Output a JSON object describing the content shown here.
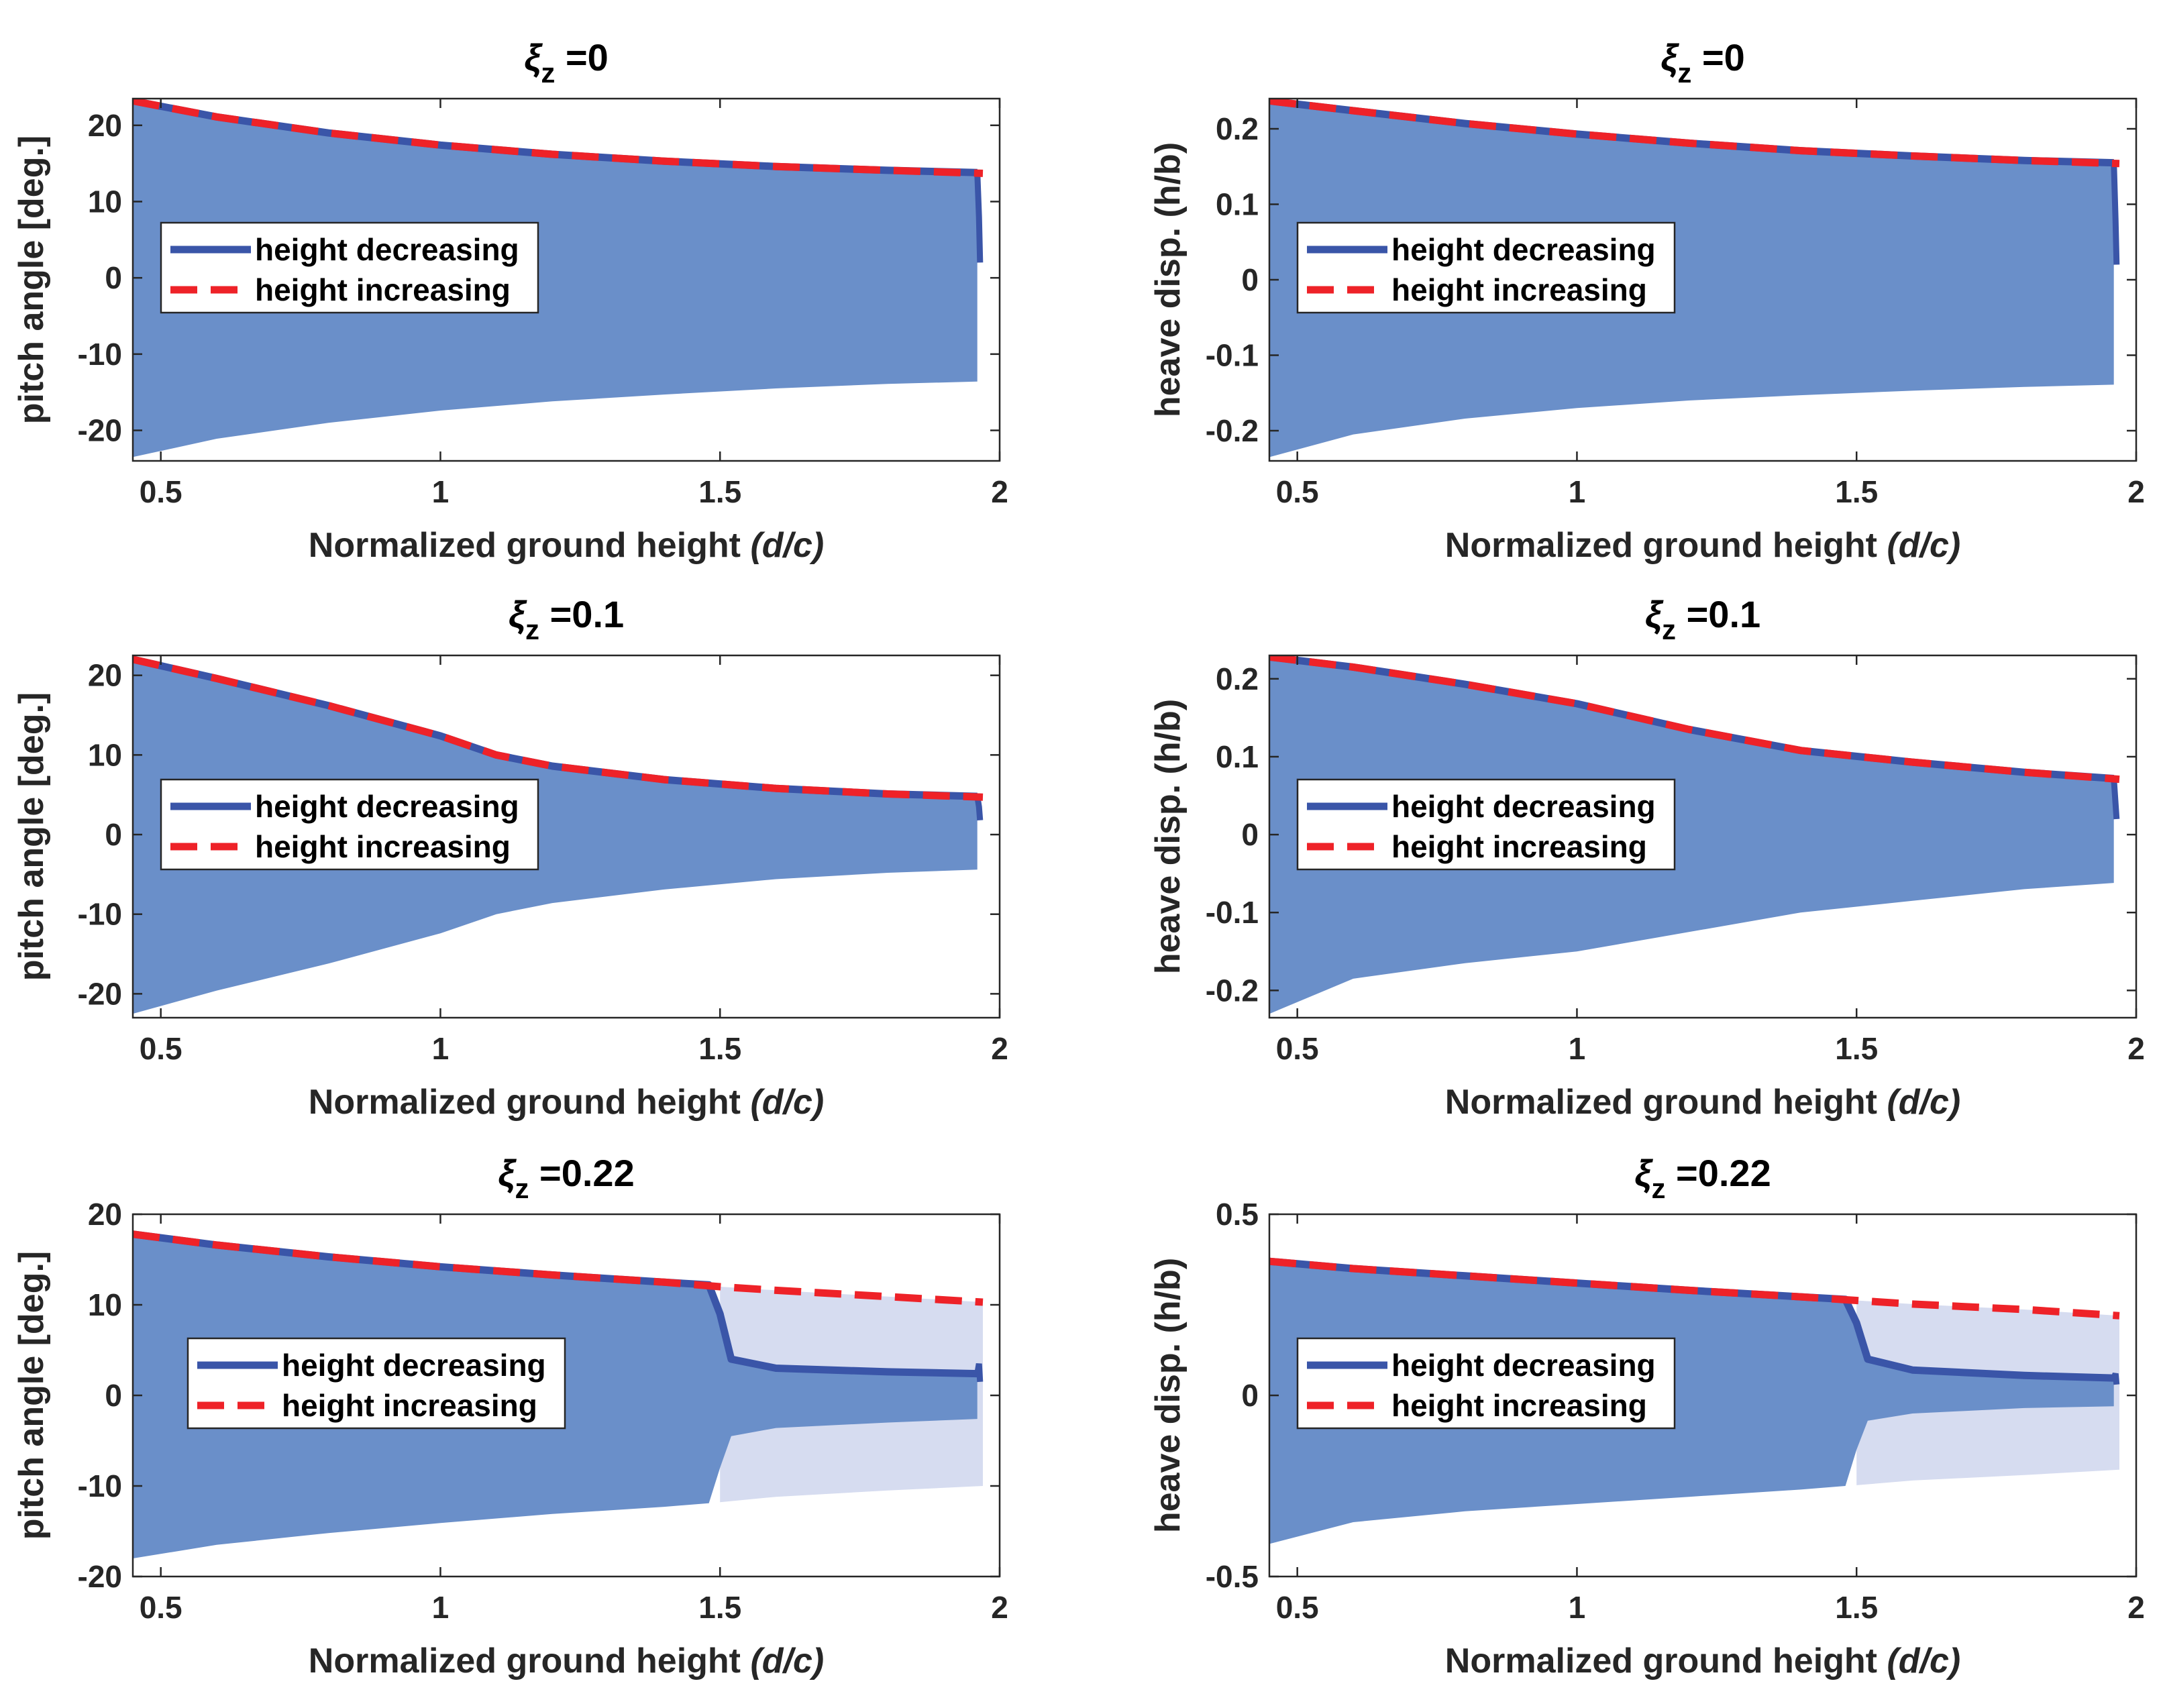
{
  "chart_data": [
    {
      "type": "area",
      "title_symbol": "ξ",
      "title_sub": "z",
      "title_value": " =0",
      "xlabel": "Normalized ground height ",
      "xlabel_italic": "(d/c)",
      "ylabel": "pitch angle [deg.]",
      "xlim": [
        0.45,
        2.0
      ],
      "ylim": [
        -24,
        23.5
      ],
      "xticks": [
        "0.5",
        "1",
        "1.5",
        "2"
      ],
      "xtick_values": [
        0.5,
        1,
        1.5,
        2
      ],
      "yticks": [
        "-20",
        "-10",
        "0",
        "10",
        "20"
      ],
      "ytick_values": [
        -20,
        -10,
        0,
        10,
        20
      ],
      "legend": [
        "height decreasing",
        "height increasing"
      ],
      "series": [
        {
          "name": "height decreasing",
          "x": [
            0.45,
            0.6,
            0.8,
            1.0,
            1.2,
            1.4,
            1.6,
            1.8,
            1.96
          ],
          "values": [
            23.2,
            21.1,
            19.0,
            17.4,
            16.2,
            15.3,
            14.6,
            14.1,
            13.8
          ],
          "drop": [
            [
              1.96,
              13.8
            ],
            [
              1.963,
              8.0
            ],
            [
              1.965,
              2.0
            ]
          ]
        },
        {
          "name": "height increasing",
          "x": [
            0.45,
            0.6,
            0.8,
            1.0,
            1.2,
            1.4,
            1.6,
            1.8,
            1.97
          ],
          "values": [
            23.2,
            21.1,
            19.0,
            17.4,
            16.2,
            15.3,
            14.6,
            14.1,
            13.7
          ]
        }
      ],
      "envelope_lower": {
        "x": [
          0.45,
          0.6,
          0.8,
          1.0,
          1.2,
          1.4,
          1.6,
          1.8,
          1.96
        ],
        "values": [
          -23.5,
          -21.1,
          -19.0,
          -17.4,
          -16.2,
          -15.3,
          -14.5,
          -13.9,
          -13.6
        ]
      },
      "legend_pos": "left"
    },
    {
      "type": "area",
      "title_symbol": "ξ",
      "title_sub": "z",
      "title_value": " =0",
      "xlabel": "Normalized ground height ",
      "xlabel_italic": "(d/c)",
      "ylabel": "heave disp. (h/b)",
      "xlim": [
        0.45,
        2.0
      ],
      "ylim": [
        -0.24,
        0.24
      ],
      "xticks": [
        "0.5",
        "1",
        "1.5",
        "2"
      ],
      "xtick_values": [
        0.5,
        1,
        1.5,
        2
      ],
      "yticks": [
        "-0.2",
        "-0.1",
        "0",
        "0.1",
        "0.2"
      ],
      "ytick_values": [
        -0.2,
        -0.1,
        0,
        0.1,
        0.2
      ],
      "legend": [
        "height decreasing",
        "height increasing"
      ],
      "series": [
        {
          "name": "height decreasing",
          "x": [
            0.45,
            0.6,
            0.8,
            1.0,
            1.2,
            1.4,
            1.6,
            1.8,
            1.96
          ],
          "values": [
            0.237,
            0.224,
            0.207,
            0.193,
            0.181,
            0.171,
            0.164,
            0.158,
            0.155
          ],
          "drop": [
            [
              1.96,
              0.155
            ],
            [
              1.963,
              0.08
            ],
            [
              1.965,
              0.02
            ]
          ]
        },
        {
          "name": "height increasing",
          "x": [
            0.45,
            0.6,
            0.8,
            1.0,
            1.2,
            1.4,
            1.6,
            1.8,
            1.97
          ],
          "values": [
            0.237,
            0.224,
            0.207,
            0.193,
            0.181,
            0.171,
            0.164,
            0.158,
            0.154
          ]
        }
      ],
      "envelope_lower": {
        "x": [
          0.45,
          0.6,
          0.8,
          1.0,
          1.2,
          1.4,
          1.6,
          1.8,
          1.96
        ],
        "values": [
          -0.235,
          -0.205,
          -0.184,
          -0.17,
          -0.16,
          -0.153,
          -0.147,
          -0.142,
          -0.139
        ]
      },
      "legend_pos": "left"
    },
    {
      "type": "area",
      "title_symbol": "ξ",
      "title_sub": "z",
      "title_value": " =0.1",
      "xlabel": "Normalized ground height ",
      "xlabel_italic": "(d/c)",
      "ylabel": "pitch angle [deg.]",
      "xlim": [
        0.45,
        2.0
      ],
      "ylim": [
        -23,
        22.5
      ],
      "xticks": [
        "0.5",
        "1",
        "1.5",
        "2"
      ],
      "xtick_values": [
        0.5,
        1,
        1.5,
        2
      ],
      "yticks": [
        "-20",
        "-10",
        "0",
        "10",
        "20"
      ],
      "ytick_values": [
        -20,
        -10,
        0,
        10,
        20
      ],
      "legend": [
        "height decreasing",
        "height increasing"
      ],
      "series": [
        {
          "name": "height decreasing",
          "x": [
            0.45,
            0.6,
            0.8,
            1.0,
            1.1,
            1.2,
            1.4,
            1.6,
            1.8,
            1.96
          ],
          "values": [
            22.0,
            19.6,
            16.2,
            12.4,
            10.0,
            8.6,
            6.9,
            5.8,
            5.1,
            4.8
          ],
          "drop": [
            [
              1.96,
              4.8
            ],
            [
              1.963,
              3.5
            ],
            [
              1.965,
              1.8
            ]
          ]
        },
        {
          "name": "height increasing",
          "x": [
            0.45,
            0.6,
            0.8,
            1.0,
            1.1,
            1.2,
            1.4,
            1.6,
            1.8,
            1.97
          ],
          "values": [
            22.0,
            19.6,
            16.2,
            12.4,
            10.0,
            8.6,
            6.9,
            5.8,
            5.1,
            4.7
          ]
        }
      ],
      "envelope_lower": {
        "x": [
          0.45,
          0.6,
          0.8,
          1.0,
          1.1,
          1.2,
          1.4,
          1.6,
          1.8,
          1.96
        ],
        "values": [
          -22.5,
          -19.6,
          -16.2,
          -12.4,
          -10.0,
          -8.6,
          -6.9,
          -5.6,
          -4.8,
          -4.4
        ]
      },
      "legend_pos": "left"
    },
    {
      "type": "area",
      "title_symbol": "ξ",
      "title_sub": "z",
      "title_value": " =0.1",
      "xlabel": "Normalized ground height ",
      "xlabel_italic": "(d/c)",
      "ylabel": "heave disp. (h/b)",
      "xlim": [
        0.45,
        2.0
      ],
      "ylim": [
        -0.235,
        0.23
      ],
      "xticks": [
        "0.5",
        "1",
        "1.5",
        "2"
      ],
      "xtick_values": [
        0.5,
        1,
        1.5,
        2
      ],
      "yticks": [
        "-0.2",
        "-0.1",
        "0",
        "0.1",
        "0.2"
      ],
      "ytick_values": [
        -0.2,
        -0.1,
        0,
        0.1,
        0.2
      ],
      "legend": [
        "height decreasing",
        "height increasing"
      ],
      "series": [
        {
          "name": "height decreasing",
          "x": [
            0.45,
            0.6,
            0.8,
            1.0,
            1.2,
            1.4,
            1.6,
            1.8,
            1.96
          ],
          "values": [
            0.228,
            0.215,
            0.193,
            0.168,
            0.135,
            0.108,
            0.093,
            0.08,
            0.072
          ],
          "drop": [
            [
              1.96,
              0.072
            ],
            [
              1.963,
              0.04
            ],
            [
              1.965,
              0.02
            ]
          ]
        },
        {
          "name": "height increasing",
          "x": [
            0.45,
            0.6,
            0.8,
            1.0,
            1.2,
            1.4,
            1.6,
            1.8,
            1.97
          ],
          "values": [
            0.228,
            0.215,
            0.193,
            0.168,
            0.135,
            0.108,
            0.093,
            0.08,
            0.071
          ]
        }
      ],
      "envelope_lower": {
        "x": [
          0.45,
          0.6,
          0.8,
          1.0,
          1.2,
          1.4,
          1.6,
          1.8,
          1.96
        ],
        "values": [
          -0.23,
          -0.185,
          -0.165,
          -0.15,
          -0.125,
          -0.1,
          -0.085,
          -0.07,
          -0.062
        ]
      },
      "legend_pos": "left"
    },
    {
      "type": "area",
      "title_symbol": "ξ",
      "title_sub": "z",
      "title_value": " =0.22",
      "xlabel": "Normalized ground height ",
      "xlabel_italic": "(d/c)",
      "ylabel": "pitch angle [deg.]",
      "xlim": [
        0.45,
        2.0
      ],
      "ylim": [
        -20,
        20
      ],
      "xticks": [
        "0.5",
        "1",
        "1.5",
        "2"
      ],
      "xtick_values": [
        0.5,
        1,
        1.5,
        2
      ],
      "yticks": [
        "-20",
        "-10",
        "0",
        "10",
        "20"
      ],
      "ytick_values": [
        -20,
        -10,
        0,
        10,
        20
      ],
      "legend": [
        "height decreasing",
        "height increasing"
      ],
      "series": [
        {
          "name": "height decreasing",
          "x": [
            0.45,
            0.6,
            0.8,
            1.0,
            1.2,
            1.4,
            1.48,
            1.5,
            1.52,
            1.6,
            1.8,
            1.96
          ],
          "values": [
            17.8,
            16.6,
            15.3,
            14.2,
            13.3,
            12.5,
            12.2,
            9.0,
            4.0,
            3.0,
            2.6,
            2.4
          ],
          "drop": [
            [
              1.96,
              2.4
            ],
            [
              1.963,
              3.5
            ],
            [
              1.965,
              1.5
            ]
          ]
        },
        {
          "name": "height increasing",
          "x": [
            0.45,
            0.6,
            0.8,
            1.0,
            1.2,
            1.4,
            1.5,
            1.6,
            1.8,
            1.97
          ],
          "values": [
            17.8,
            16.6,
            15.3,
            14.2,
            13.3,
            12.5,
            12.0,
            11.6,
            10.9,
            10.3
          ]
        }
      ],
      "envelope_lower": {
        "x": [
          0.45,
          0.6,
          0.8,
          1.0,
          1.2,
          1.4,
          1.48,
          1.5,
          1.52,
          1.6,
          1.8,
          1.96
        ],
        "values": [
          -18.0,
          -16.5,
          -15.2,
          -14.1,
          -13.1,
          -12.3,
          -11.9,
          -8.0,
          -4.5,
          -3.6,
          -3.0,
          -2.6
        ]
      },
      "envelope_increasing_lower": {
        "x": [
          1.5,
          1.6,
          1.8,
          1.97
        ],
        "values": [
          -11.8,
          -11.2,
          -10.5,
          -10.0
        ]
      },
      "legend_pos": "left-center"
    },
    {
      "type": "area",
      "title_symbol": "ξ",
      "title_sub": "z",
      "title_value": " =0.22",
      "xlabel": "Normalized ground height ",
      "xlabel_italic": "(d/c)",
      "ylabel": "heave disp. (h/b)",
      "xlim": [
        0.45,
        2.0
      ],
      "ylim": [
        -0.5,
        0.5
      ],
      "xticks": [
        "0.5",
        "1",
        "1.5",
        "2"
      ],
      "xtick_values": [
        0.5,
        1,
        1.5,
        2
      ],
      "yticks": [
        "-0.5",
        "0",
        "0.5"
      ],
      "ytick_values": [
        -0.5,
        0,
        0.5
      ],
      "legend": [
        "height decreasing",
        "height increasing"
      ],
      "series": [
        {
          "name": "height decreasing",
          "x": [
            0.45,
            0.6,
            0.8,
            1.0,
            1.2,
            1.4,
            1.48,
            1.5,
            1.52,
            1.6,
            1.8,
            1.96
          ],
          "values": [
            0.37,
            0.35,
            0.33,
            0.31,
            0.29,
            0.272,
            0.265,
            0.2,
            0.1,
            0.07,
            0.055,
            0.048
          ],
          "drop": [
            [
              1.96,
              0.048
            ],
            [
              1.963,
              0.06
            ],
            [
              1.965,
              0.03
            ]
          ]
        },
        {
          "name": "height increasing",
          "x": [
            0.45,
            0.6,
            0.8,
            1.0,
            1.2,
            1.4,
            1.5,
            1.6,
            1.8,
            1.97
          ],
          "values": [
            0.37,
            0.35,
            0.33,
            0.31,
            0.29,
            0.272,
            0.262,
            0.252,
            0.237,
            0.22
          ]
        }
      ],
      "envelope_lower": {
        "x": [
          0.45,
          0.6,
          0.8,
          1.0,
          1.2,
          1.4,
          1.48,
          1.5,
          1.52,
          1.6,
          1.8,
          1.96
        ],
        "values": [
          -0.41,
          -0.35,
          -0.32,
          -0.3,
          -0.28,
          -0.26,
          -0.25,
          -0.15,
          -0.07,
          -0.05,
          -0.035,
          -0.03
        ]
      },
      "envelope_increasing_lower": {
        "x": [
          1.5,
          1.6,
          1.8,
          1.97
        ],
        "values": [
          -0.248,
          -0.235,
          -0.22,
          -0.205
        ]
      },
      "legend_pos": "left"
    }
  ],
  "colors": {
    "fill": "#6a8fc9",
    "fill_light": "#d6dcf0",
    "decreasing": "#3a55a8",
    "increasing": "#ee2228",
    "axis": "#262626"
  }
}
